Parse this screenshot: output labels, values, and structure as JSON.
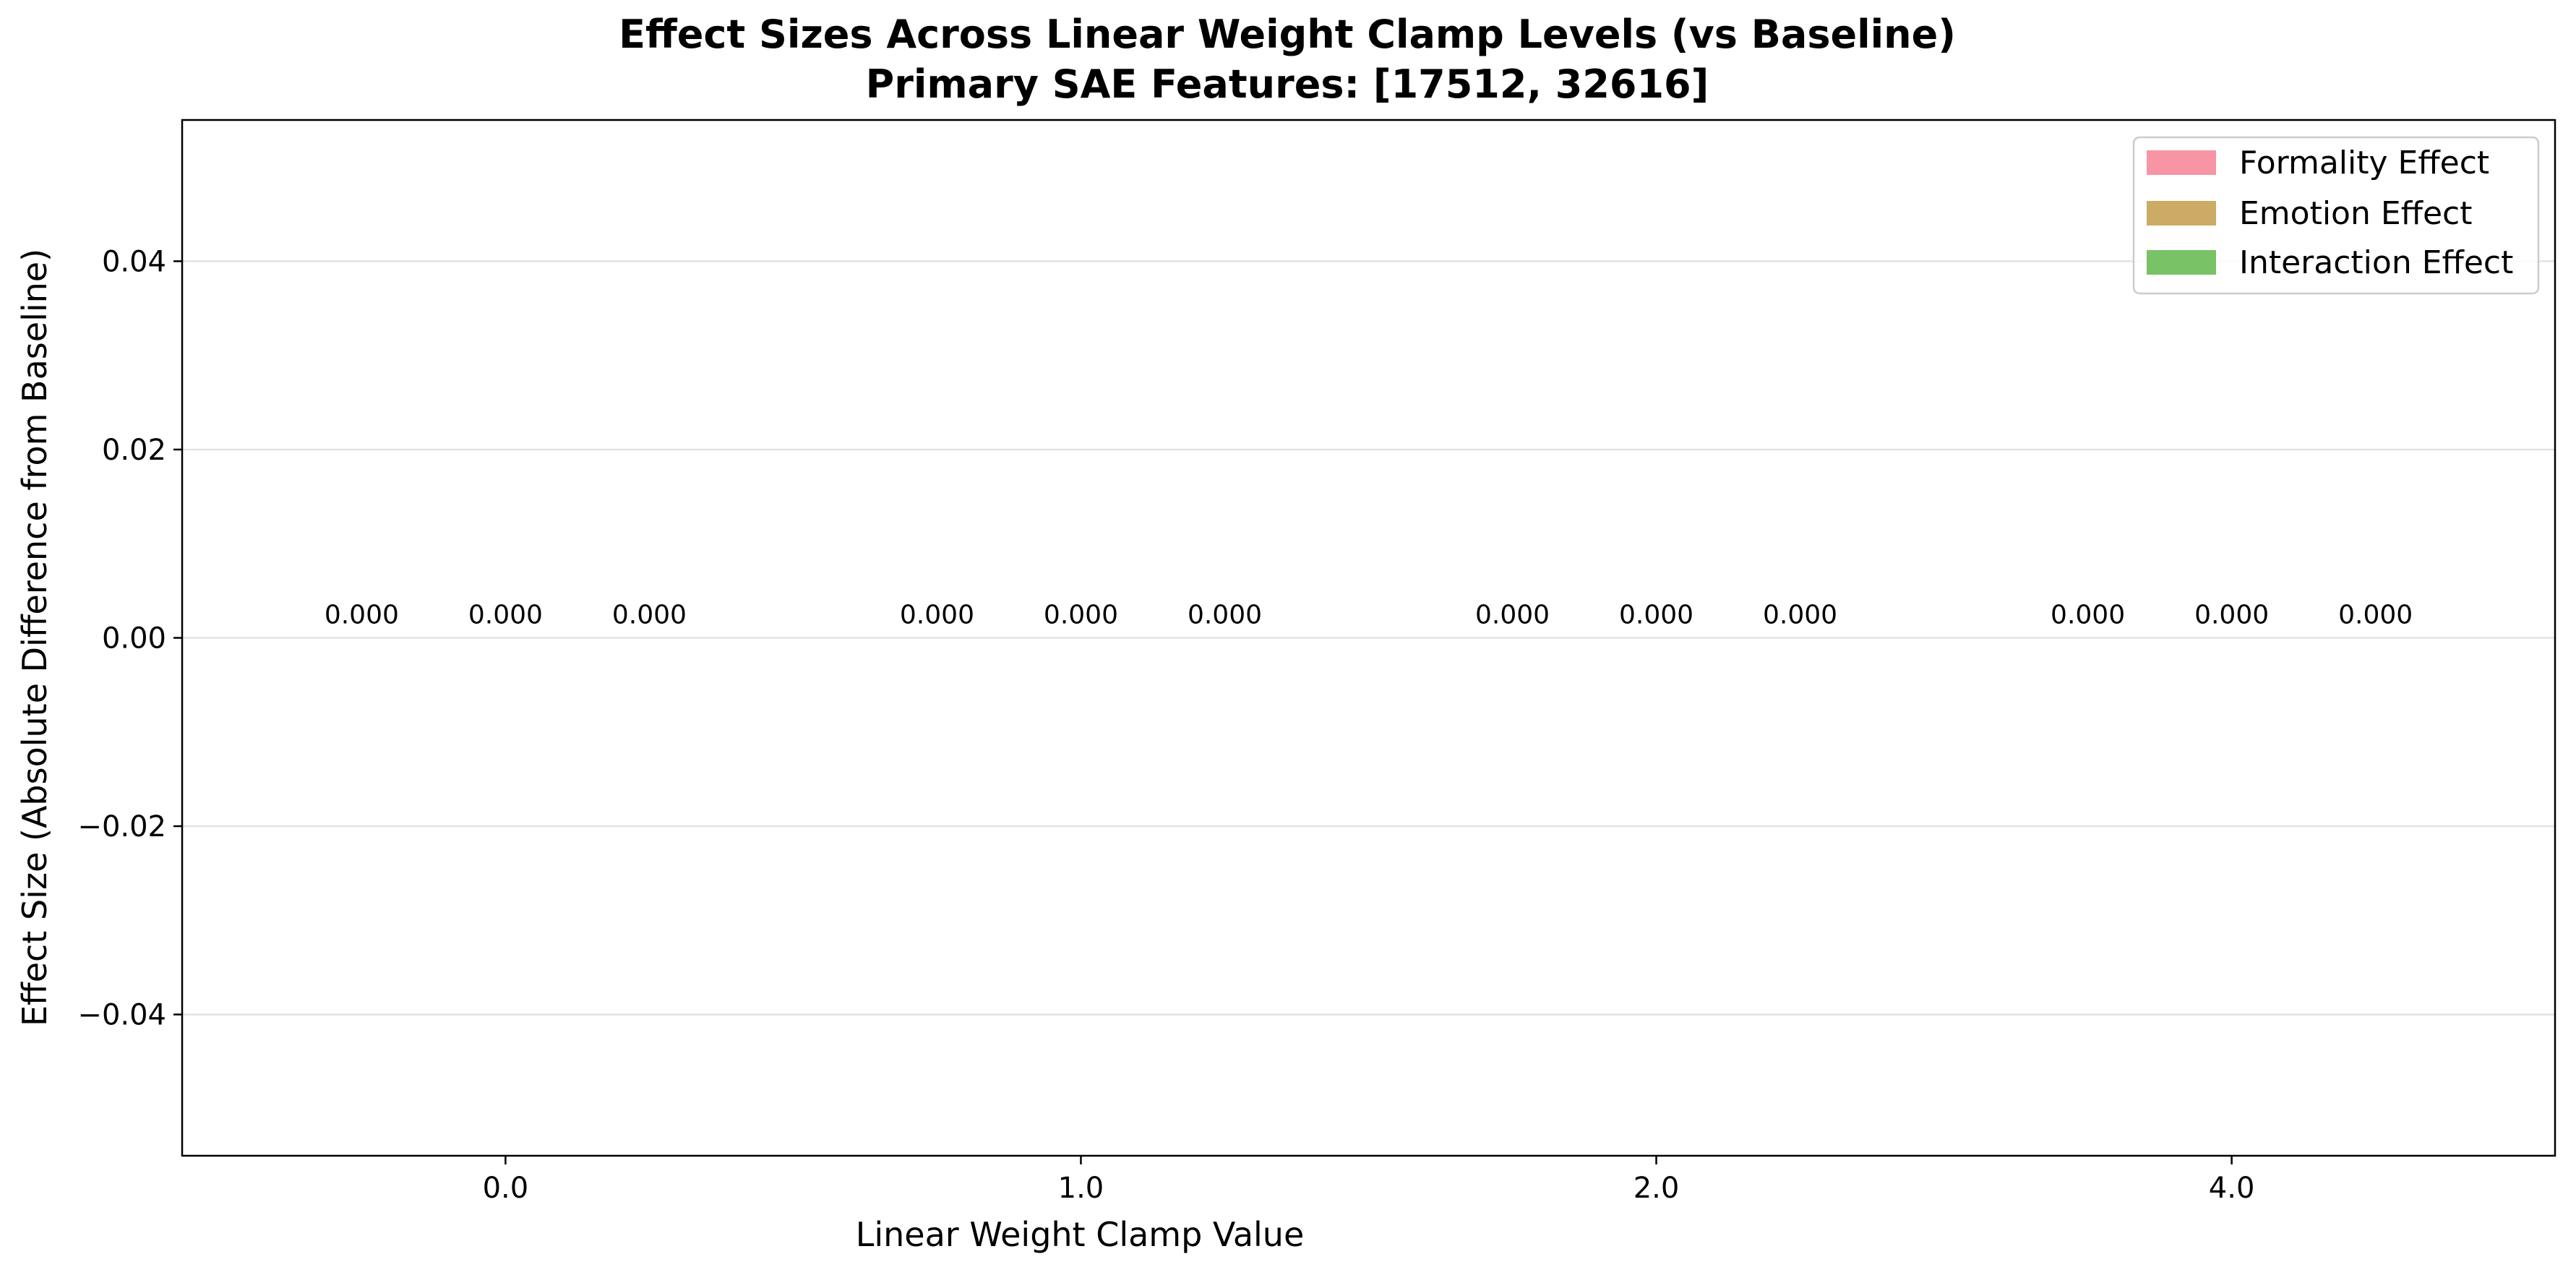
{
  "chart_data": {
    "type": "bar",
    "title": "Effect Sizes Across Linear Weight Clamp Levels (vs Baseline)",
    "subtitle": "Primary SAE Features: [17512, 32616]",
    "xlabel": "Linear Weight Clamp Value",
    "ylabel": "Effect Size (Absolute Difference from Baseline)",
    "categories": [
      "0.0",
      "1.0",
      "2.0",
      "4.0"
    ],
    "ylim": [
      -0.055,
      0.055
    ],
    "yticks": [
      -0.04,
      -0.02,
      0.0,
      0.02,
      0.04
    ],
    "ytick_labels": [
      "−0.04",
      "−0.02",
      "0.00",
      "0.02",
      "0.04"
    ],
    "grid": "horizontal",
    "legend_position": "top-right",
    "series": [
      {
        "name": "Formality Effect",
        "color": "#f78fa0",
        "values": [
          0.0,
          0.0,
          0.0,
          0.0
        ],
        "labels": [
          "0.000",
          "0.000",
          "0.000",
          "0.000"
        ]
      },
      {
        "name": "Emotion Effect",
        "color": "#c9a85c",
        "values": [
          0.0,
          0.0,
          0.0,
          0.0
        ],
        "labels": [
          "0.000",
          "0.000",
          "0.000",
          "0.000"
        ]
      },
      {
        "name": "Interaction Effect",
        "color": "#72bf5e",
        "values": [
          0.0,
          0.0,
          0.0,
          0.0
        ],
        "labels": [
          "0.000",
          "0.000",
          "0.000",
          "0.000"
        ]
      }
    ]
  }
}
